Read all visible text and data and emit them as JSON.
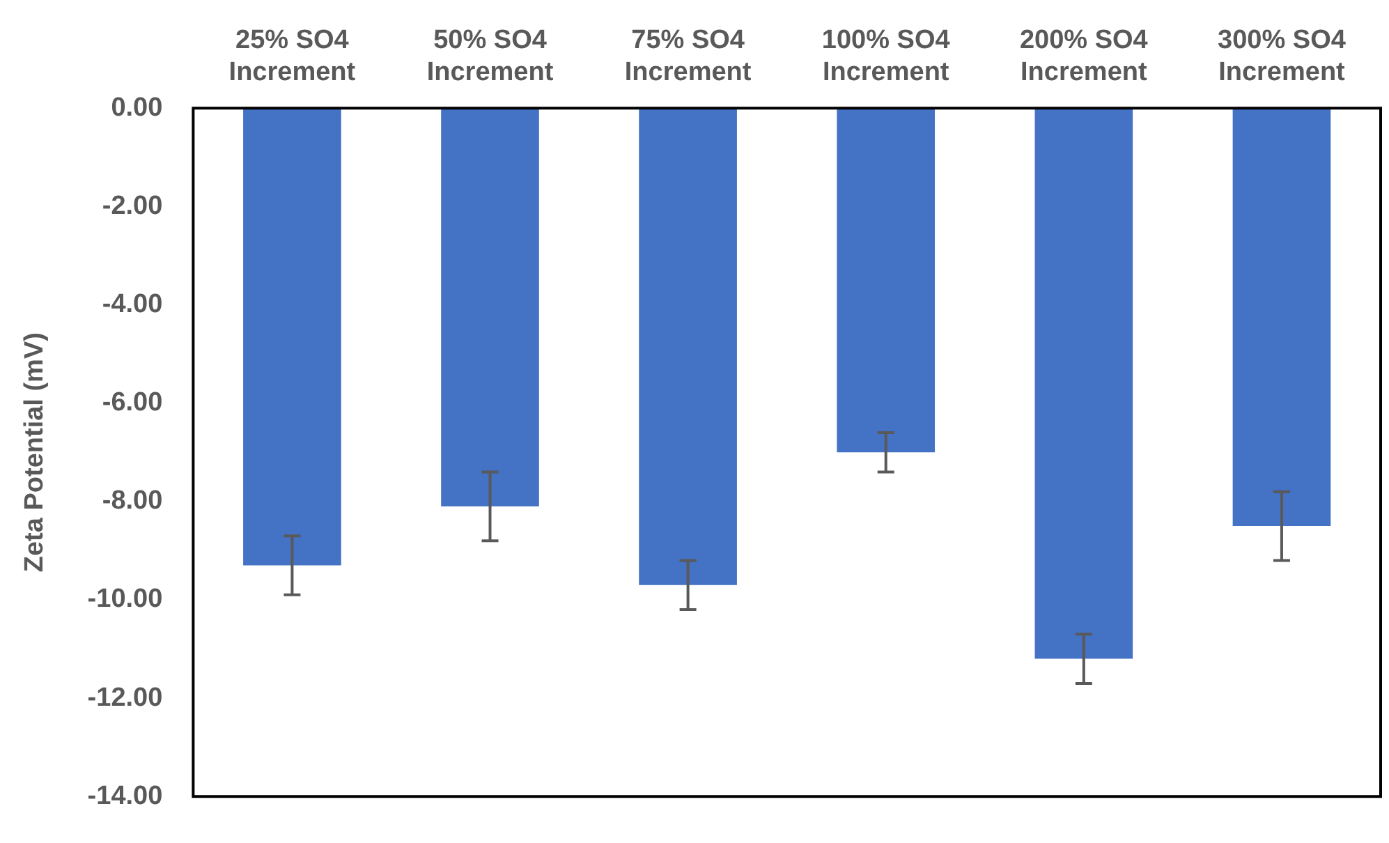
{
  "chart_data": {
    "type": "bar",
    "ylabel": "Zeta Potential (mV)",
    "categories": [
      "25% SO4\nIncrement",
      "50% SO4\nIncrement",
      "75% SO4\nIncrement",
      "100% SO4\nIncrement",
      "200% SO4\nIncrement",
      "300% SO4\nIncrement"
    ],
    "values": [
      -9.3,
      -8.1,
      -9.7,
      -7.0,
      -11.2,
      -8.5
    ],
    "errors": [
      0.6,
      0.7,
      0.5,
      0.4,
      0.5,
      0.7
    ],
    "color": "#4472c4",
    "ylim": [
      -14,
      0
    ],
    "yticks": [
      {
        "value": 0,
        "label": "0.00"
      },
      {
        "value": -2,
        "label": "-2.00"
      },
      {
        "value": -4,
        "label": "-4.00"
      },
      {
        "value": -6,
        "label": "-6.00"
      },
      {
        "value": -8,
        "label": "-8.00"
      },
      {
        "value": -10,
        "label": "-10.00"
      },
      {
        "value": -12,
        "label": "-12.00"
      },
      {
        "value": -14,
        "label": "-14.00"
      }
    ],
    "grid": false,
    "legend": false
  }
}
